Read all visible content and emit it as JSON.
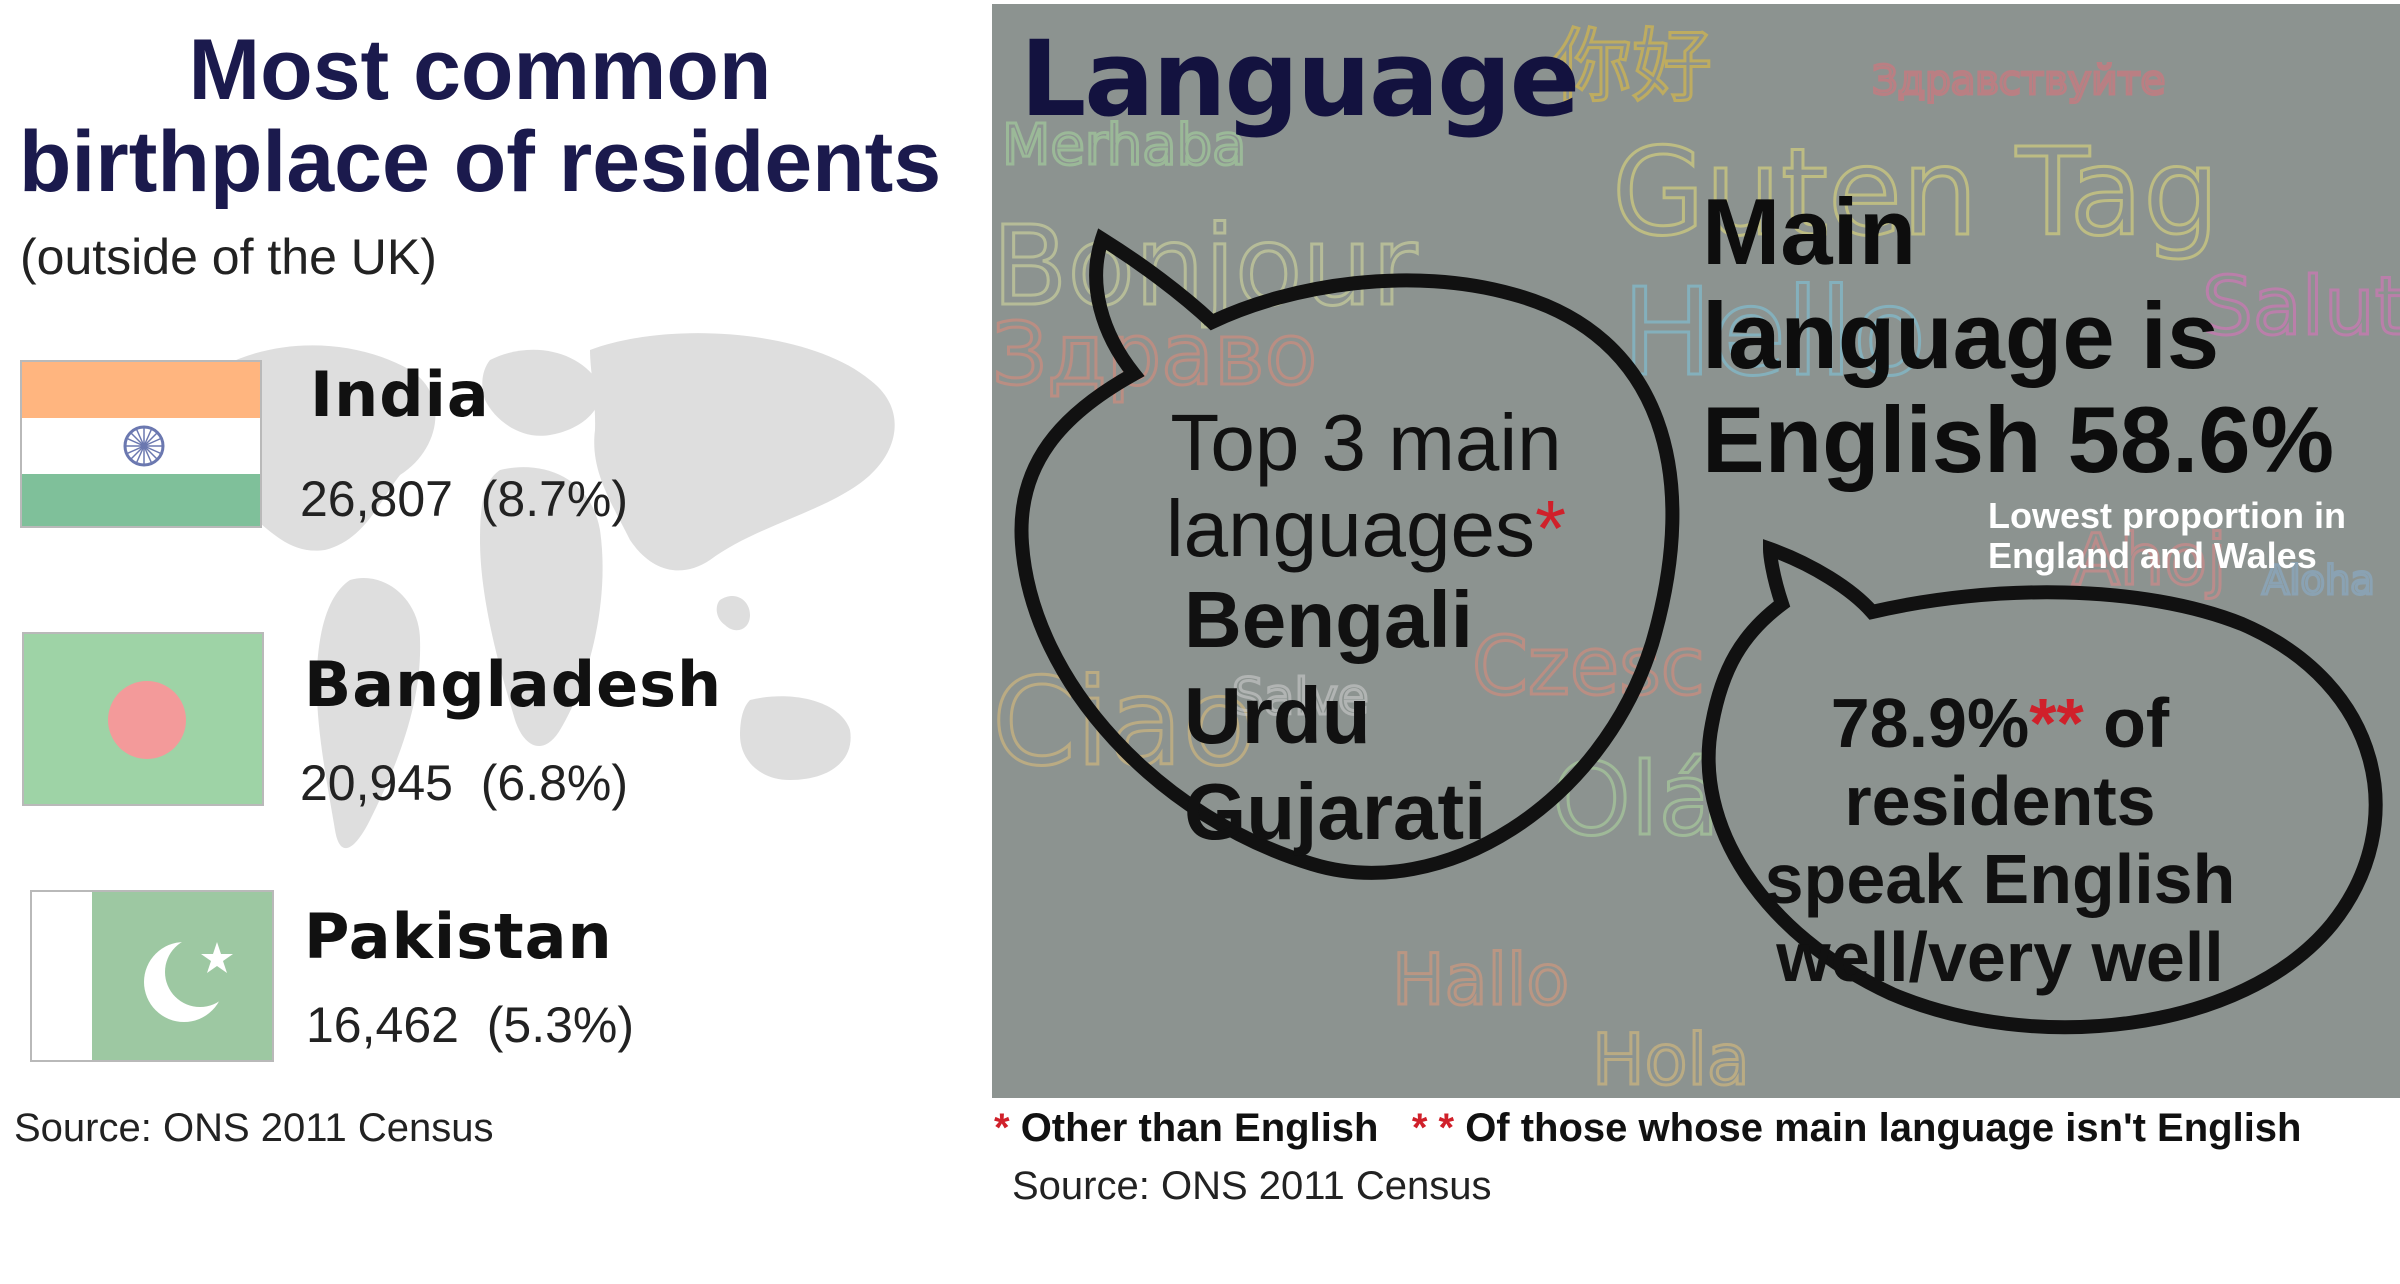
{
  "left": {
    "title_line1": "Most common",
    "title_line2": "birthplace of residents",
    "subtitle": "(outside of the UK)",
    "countries": [
      {
        "name": "India",
        "count": "26,807",
        "percent": "(8.7%)",
        "share": 8.7,
        "flag": "india-flag"
      },
      {
        "name": "Bangladesh",
        "count": "20,945",
        "percent": "(6.8%)",
        "share": 6.8,
        "flag": "bangladesh-flag"
      },
      {
        "name": "Pakistan",
        "count": "16,462",
        "percent": "(5.3%)",
        "share": 5.3,
        "flag": "pakistan-flag"
      }
    ],
    "source": "Source: ONS 2011 Census"
  },
  "right": {
    "title": "Language",
    "background_words": [
      "你好",
      "Здравствуйте",
      "Merhaba",
      "Guten Tag",
      "Bonjour",
      "Здраво",
      "Hello",
      "Salut",
      "Ahoj",
      "Aloha",
      "Czesc",
      "Ciao",
      "Olá",
      "Hallo",
      "Hola",
      "Salve"
    ],
    "main_language": {
      "line1": "Main",
      "line2": "language is",
      "line3": "English 58.6%",
      "note_line1": "Lowest proportion in",
      "note_line2": "England and Wales"
    },
    "top3": {
      "heading_line1": "Top 3 main",
      "heading_line2": "languages",
      "marker": "*",
      "languages": [
        "Bengali",
        "Urdu",
        "Gujarati"
      ]
    },
    "speak": {
      "value": "78.9%",
      "marker": "**",
      "line1_rest": " of",
      "line2": "residents",
      "line3": "speak English",
      "line4": "well/very well"
    },
    "footnotes": {
      "marker1": "*",
      "text1": " Other than English",
      "marker2": "* *",
      "text2": " Of those whose main language isn't English"
    },
    "source": "Source: ONS 2011 Census"
  },
  "colors": {
    "title_navy": "#1b1a4d",
    "accent_red": "#d0202a",
    "panel_gray": "#8c9390"
  }
}
